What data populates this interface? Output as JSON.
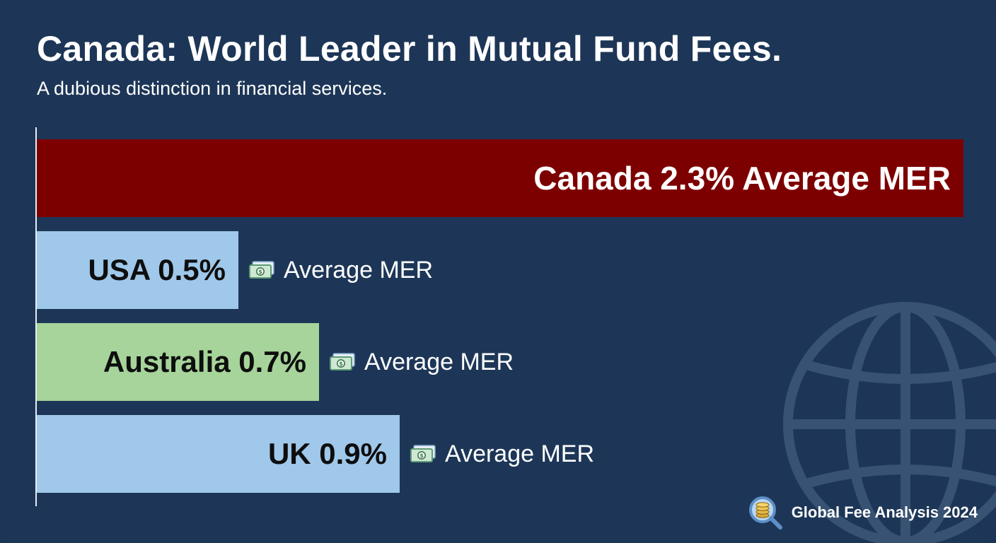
{
  "chart_data": {
    "type": "bar",
    "orientation": "horizontal",
    "title": "Canada: World Leader in Mutual Fund Fees.",
    "subtitle": "A dubious distinction in financial services.",
    "categories": [
      "Canada",
      "USA",
      "Australia",
      "UK"
    ],
    "values": [
      2.3,
      0.5,
      0.7,
      0.9
    ],
    "unit": "%",
    "bar_labels": [
      "Canada 2.3% Average MER",
      "USA 0.5%",
      "Australia 0.7%",
      "UK 0.9%"
    ],
    "annotations": [
      "",
      "Average MER",
      "Average MER",
      "Average MER"
    ],
    "colors": [
      "#7d0000",
      "#9fc8ea",
      "#a6d49a",
      "#9fc8ea"
    ],
    "grid": false,
    "legend": "none"
  },
  "footer": {
    "label": "Global Fee Analysis 2024",
    "icon": "magnifier-coins-icon"
  },
  "decor": {
    "background_icon": "globe-icon",
    "annotation_icon": "money-bill-icon"
  },
  "colors": {
    "background": "#1d3657",
    "highlight": "#7d0000",
    "blue": "#9fc8ea",
    "green": "#a6d49a"
  }
}
